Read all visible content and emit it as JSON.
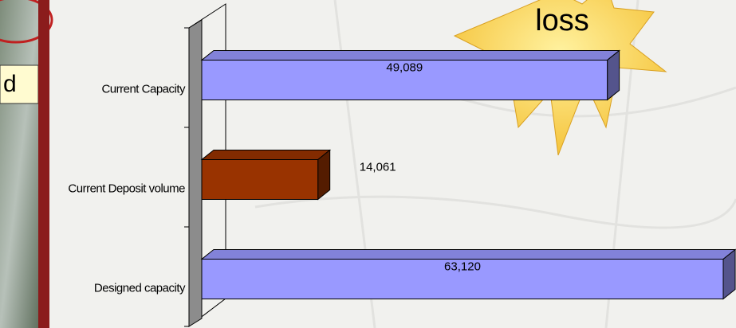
{
  "chart_data": {
    "type": "bar3d_horizontal",
    "categories": [
      "Current Capacity",
      "Current Deposit volume",
      "Designed capacity"
    ],
    "values": [
      49089,
      14061,
      63120
    ],
    "value_labels": [
      "49,089",
      "14,061",
      "63,120"
    ],
    "colors": [
      "#9999ff",
      "#993300",
      "#9999ff"
    ],
    "annotation": "loss"
  },
  "side_label": "d"
}
